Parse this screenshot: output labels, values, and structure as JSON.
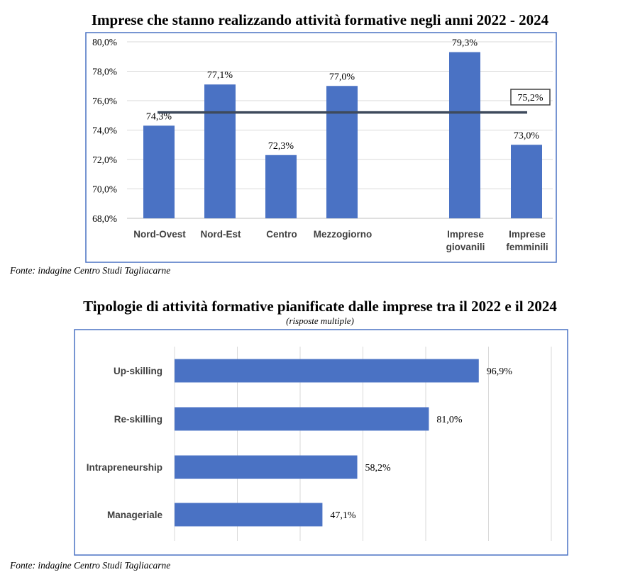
{
  "chart_data": [
    {
      "type": "bar",
      "title": "Imprese che stanno realizzando attività formative negli anni 2022 - 2024",
      "categories": [
        {
          "label": [
            "Nord-Ovest"
          ],
          "value": 74.3,
          "value_label": "74,3%"
        },
        {
          "label": [
            "Nord-Est"
          ],
          "value": 77.1,
          "value_label": "77,1%"
        },
        {
          "label": [
            "Centro"
          ],
          "value": 72.3,
          "value_label": "72,3%"
        },
        {
          "label": [
            "Mezzogiorno"
          ],
          "value": 77.0,
          "value_label": "77,0%"
        },
        {
          "label": [
            "Imprese",
            "giovanili"
          ],
          "value": 79.3,
          "value_label": "79,3%"
        },
        {
          "label": [
            "Imprese",
            "femminili"
          ],
          "value": 73.0,
          "value_label": "73,0%"
        }
      ],
      "reference_line": {
        "value": 75.2,
        "label": "75,2%"
      },
      "ylim": [
        68,
        80
      ],
      "yticks": [
        {
          "value": 80,
          "label": "80,0%"
        },
        {
          "value": 78,
          "label": "78,0%"
        },
        {
          "value": 76,
          "label": "76,0%"
        },
        {
          "value": 74,
          "label": "74,0%"
        },
        {
          "value": 72,
          "label": "72,0%"
        },
        {
          "value": 70,
          "label": "70,0%"
        },
        {
          "value": 68,
          "label": "68,0%"
        }
      ],
      "grid": true,
      "bar_color": "#4a72c4",
      "line_color": "#3e4a5c",
      "source": "Fonte: indagine Centro Studi Tagliacarne"
    },
    {
      "type": "bar",
      "orientation": "horizontal",
      "title": "Tipologie di attività formative pianificate dalle imprese tra il 2022 e il 2024",
      "subtitle": "(risposte multiple)",
      "categories": [
        {
          "label": "Up-skilling",
          "value": 96.9,
          "value_label": "96,9%"
        },
        {
          "label": "Re-skilling",
          "value": 81.0,
          "value_label": "81,0%"
        },
        {
          "label": "Intrapreneurship",
          "value": 58.2,
          "value_label": "58,2%"
        },
        {
          "label": "Manageriale",
          "value": 47.1,
          "value_label": "47,1%"
        }
      ],
      "xlim": [
        0,
        120
      ],
      "grid": true,
      "bar_color": "#4a72c4",
      "source": "Fonte: indagine Centro Studi Tagliacarne"
    }
  ]
}
